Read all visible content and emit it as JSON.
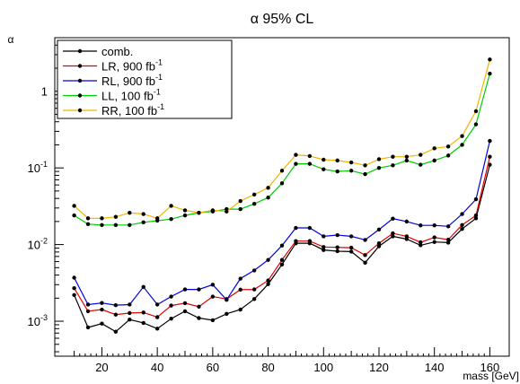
{
  "chart_data": {
    "type": "line",
    "title": "α 95% CL",
    "xlabel": "mass [GeV]",
    "ylabel": "α",
    "xlim": [
      3,
      167
    ],
    "ylim": [
      0.00035,
      5
    ],
    "yscale": "log",
    "grid": false,
    "legend_position": "top-left",
    "x_ticks": [
      20,
      40,
      60,
      80,
      100,
      120,
      140,
      160
    ],
    "y_ticks": [
      {
        "value": 0.001,
        "base": "10",
        "exp": "-3"
      },
      {
        "value": 0.01,
        "base": "10",
        "exp": "-2"
      },
      {
        "value": 0.1,
        "base": "10",
        "exp": "-1"
      },
      {
        "value": 1,
        "base": "1",
        "exp": ""
      }
    ],
    "x": [
      10,
      15,
      20,
      25,
      30,
      35,
      40,
      45,
      50,
      55,
      60,
      65,
      70,
      75,
      80,
      85,
      90,
      95,
      100,
      105,
      110,
      115,
      120,
      125,
      130,
      135,
      140,
      145,
      150,
      155,
      160
    ],
    "series": [
      {
        "name": "comb.",
        "label_base": "comb.",
        "label_sup": "",
        "color": "#000000",
        "values": [
          0.0022,
          0.00083,
          0.00093,
          0.00073,
          0.00105,
          0.00095,
          0.0008,
          0.00108,
          0.00135,
          0.0011,
          0.00103,
          0.00125,
          0.00142,
          0.00195,
          0.00305,
          0.0055,
          0.0104,
          0.0104,
          0.0085,
          0.0082,
          0.0081,
          0.0058,
          0.0095,
          0.0128,
          0.0118,
          0.0098,
          0.0108,
          0.0106,
          0.016,
          0.022,
          0.11
        ]
      },
      {
        "name": "LR, 900 fb-1",
        "label_base": "LR, 900 fb",
        "label_sup": "-1",
        "color": "#e00000",
        "values": [
          0.0027,
          0.00135,
          0.00142,
          0.00122,
          0.00128,
          0.0013,
          0.00113,
          0.0016,
          0.00172,
          0.00155,
          0.0021,
          0.00195,
          0.00258,
          0.0026,
          0.0034,
          0.0063,
          0.0111,
          0.0111,
          0.0093,
          0.0092,
          0.0091,
          0.0073,
          0.0104,
          0.014,
          0.0128,
          0.0107,
          0.0124,
          0.0116,
          0.018,
          0.024,
          0.14
        ]
      },
      {
        "name": "RL, 900 fb-1",
        "label_base": "RL, 900 fb",
        "label_sup": "-1",
        "color": "#0000e0",
        "values": [
          0.0037,
          0.00165,
          0.00173,
          0.00162,
          0.00165,
          0.0028,
          0.00165,
          0.0021,
          0.0026,
          0.0026,
          0.003,
          0.0019,
          0.0036,
          0.0046,
          0.0063,
          0.0097,
          0.0165,
          0.0165,
          0.0128,
          0.0133,
          0.0128,
          0.0115,
          0.0157,
          0.0218,
          0.02,
          0.0178,
          0.0178,
          0.0173,
          0.025,
          0.039,
          0.225
        ]
      },
      {
        "name": "LL, 100 fb-1",
        "label_base": "LL, 100 fb",
        "label_sup": "-1",
        "color": "#00cc00",
        "values": [
          0.024,
          0.0185,
          0.018,
          0.018,
          0.018,
          0.0195,
          0.0205,
          0.0215,
          0.024,
          0.026,
          0.027,
          0.029,
          0.029,
          0.034,
          0.041,
          0.063,
          0.113,
          0.113,
          0.096,
          0.09,
          0.092,
          0.083,
          0.1,
          0.108,
          0.125,
          0.11,
          0.125,
          0.145,
          0.2,
          0.37,
          1.7
        ]
      },
      {
        "name": "RR, 100 fb-1",
        "label_base": "RR, 100 fb",
        "label_sup": "-1",
        "color": "#f0b400",
        "values": [
          0.032,
          0.022,
          0.022,
          0.023,
          0.026,
          0.025,
          0.022,
          0.032,
          0.028,
          0.026,
          0.028,
          0.027,
          0.037,
          0.045,
          0.055,
          0.092,
          0.148,
          0.143,
          0.128,
          0.125,
          0.118,
          0.108,
          0.13,
          0.14,
          0.14,
          0.148,
          0.18,
          0.19,
          0.26,
          0.55,
          2.6
        ]
      }
    ]
  }
}
